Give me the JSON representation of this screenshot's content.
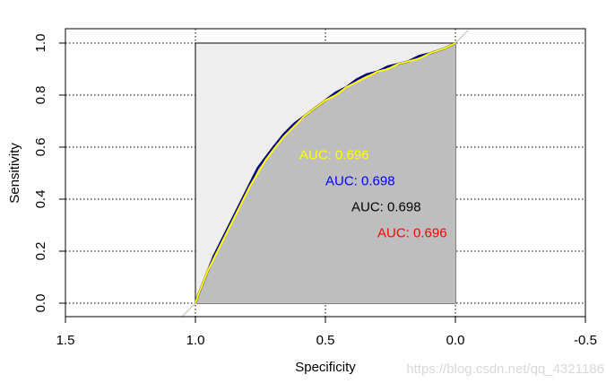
{
  "chart_data": {
    "type": "line",
    "title": "",
    "xlabel": "Specificity",
    "ylabel": "Sensitivity",
    "xlim": [
      1.5,
      -0.5
    ],
    "ylim": [
      0,
      1
    ],
    "x_ticks": [
      "1.5",
      "1.0",
      "0.5",
      "0.0",
      "-0.5"
    ],
    "y_ticks": [
      "0.0",
      "0.2",
      "0.4",
      "0.6",
      "0.8",
      "1.0"
    ],
    "grid": "dotted",
    "auc_polygon": {
      "fill": "#bebebe"
    },
    "max_auc_polygon": {
      "fill": "#eeeeee",
      "x": [
        1,
        1,
        0,
        0
      ],
      "y": [
        0,
        1,
        1,
        0
      ]
    },
    "diagonal": {
      "color": "#bebebe"
    },
    "series": [
      {
        "color": "#000080",
        "x": [
          1.0,
          0.99,
          0.97,
          0.95,
          0.93,
          0.91,
          0.88,
          0.85,
          0.82,
          0.79,
          0.76,
          0.73,
          0.7,
          0.66,
          0.62,
          0.58,
          0.54,
          0.5,
          0.46,
          0.42,
          0.38,
          0.34,
          0.3,
          0.26,
          0.22,
          0.18,
          0.14,
          0.1,
          0.07,
          0.04,
          0.02,
          0.0
        ],
        "y": [
          0.0,
          0.03,
          0.08,
          0.13,
          0.18,
          0.22,
          0.28,
          0.34,
          0.4,
          0.46,
          0.52,
          0.56,
          0.6,
          0.65,
          0.69,
          0.72,
          0.75,
          0.78,
          0.81,
          0.83,
          0.86,
          0.88,
          0.89,
          0.91,
          0.92,
          0.93,
          0.95,
          0.96,
          0.97,
          0.98,
          0.99,
          1.0
        ]
      },
      {
        "color": "#ffff00",
        "x": [
          1.0,
          0.99,
          0.97,
          0.95,
          0.93,
          0.91,
          0.88,
          0.85,
          0.82,
          0.79,
          0.76,
          0.73,
          0.7,
          0.66,
          0.62,
          0.58,
          0.54,
          0.5,
          0.46,
          0.42,
          0.38,
          0.34,
          0.3,
          0.26,
          0.22,
          0.18,
          0.14,
          0.1,
          0.07,
          0.04,
          0.02,
          0.0
        ],
        "y": [
          0.0,
          0.03,
          0.08,
          0.13,
          0.17,
          0.21,
          0.27,
          0.33,
          0.39,
          0.45,
          0.5,
          0.55,
          0.59,
          0.64,
          0.68,
          0.72,
          0.75,
          0.78,
          0.8,
          0.83,
          0.85,
          0.87,
          0.89,
          0.9,
          0.92,
          0.93,
          0.94,
          0.96,
          0.97,
          0.98,
          0.99,
          1.0
        ]
      }
    ],
    "auc_labels": [
      {
        "text": "AUC: 0.696",
        "color": "#ffff00",
        "x": 0.6,
        "y": 0.57
      },
      {
        "text": "AUC: 0.698",
        "color": "#0000ff",
        "x": 0.5,
        "y": 0.47
      },
      {
        "text": "AUC: 0.698",
        "color": "#000000",
        "x": 0.4,
        "y": 0.37
      },
      {
        "text": "AUC: 0.696",
        "color": "#ff0000",
        "x": 0.3,
        "y": 0.27
      }
    ]
  },
  "watermark": "https://blog.csdn.net/qq_4321186"
}
